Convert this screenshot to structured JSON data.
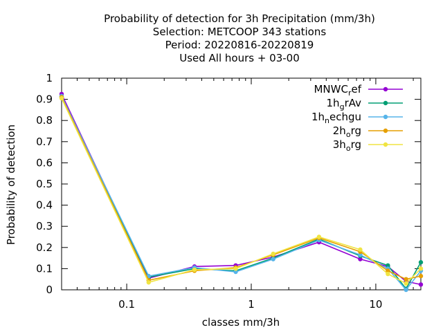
{
  "chart_data": {
    "type": "line",
    "title_lines": [
      "Probability of detection  for 3h Precipitation (mm/3h)",
      "Selection: METCOOP    343 stations",
      "Period: 20220816-20220819",
      "Used  All hours  + 03-00"
    ],
    "xlabel": "classes mm/3h",
    "ylabel": "Probability of detection",
    "x_scale": "log",
    "xlim": [
      0.03,
      23
    ],
    "ylim": [
      0,
      1
    ],
    "x_ticks": [
      0.1,
      1,
      10
    ],
    "x_tick_labels": [
      "0.1",
      "1",
      "10"
    ],
    "y_ticks": [
      0,
      0.1,
      0.2,
      0.3,
      0.4,
      0.5,
      0.6,
      0.7,
      0.8,
      0.9,
      1
    ],
    "y_tick_labels": [
      "0",
      "0.1",
      "0.2",
      "0.3",
      "0.4",
      "0.5",
      "0.6",
      "0.7",
      "0.8",
      "0.9",
      "1"
    ],
    "grid": false,
    "legend_position": "top-right",
    "x": [
      0.03,
      0.15,
      0.35,
      0.75,
      1.5,
      3.5,
      7.5,
      12.5,
      17.5,
      23
    ],
    "series": [
      {
        "name": "MNWC_ref",
        "name_parts": [
          [
            "MNWC",
            false
          ],
          [
            "r",
            true
          ],
          [
            "ef",
            false
          ]
        ],
        "color": "#9400d3",
        "values": [
          0.925,
          0.055,
          0.11,
          0.115,
          0.155,
          0.225,
          0.145,
          0.11,
          0.04,
          0.025
        ]
      },
      {
        "name": "1h_grAv",
        "name_parts": [
          [
            "1h",
            false
          ],
          [
            "g",
            true
          ],
          [
            "rAv",
            false
          ]
        ],
        "color": "#009e73",
        "values": [
          0.91,
          0.06,
          0.1,
          0.09,
          0.15,
          0.24,
          0.16,
          0.115,
          0.005,
          0.13
        ]
      },
      {
        "name": "1h_nechgu",
        "name_parts": [
          [
            "1h",
            false
          ],
          [
            "n",
            true
          ],
          [
            "echgu",
            false
          ]
        ],
        "color": "#56b4e9",
        "values": [
          0.915,
          0.065,
          0.105,
          0.085,
          0.145,
          0.235,
          0.165,
          0.1,
          0.0,
          0.09
        ]
      },
      {
        "name": "2h_org",
        "name_parts": [
          [
            "2h",
            false
          ],
          [
            "o",
            true
          ],
          [
            "rg",
            false
          ]
        ],
        "color": "#e69f00",
        "values": [
          0.91,
          0.045,
          0.09,
          0.105,
          0.165,
          0.245,
          0.18,
          0.09,
          0.05,
          0.065
        ]
      },
      {
        "name": "3h_org",
        "name_parts": [
          [
            "3h",
            false
          ],
          [
            "o",
            true
          ],
          [
            "rg",
            false
          ]
        ],
        "color": "#f0e442",
        "values": [
          0.905,
          0.035,
          0.095,
          0.1,
          0.17,
          0.25,
          0.19,
          0.075,
          0.03,
          0.1
        ]
      }
    ]
  }
}
